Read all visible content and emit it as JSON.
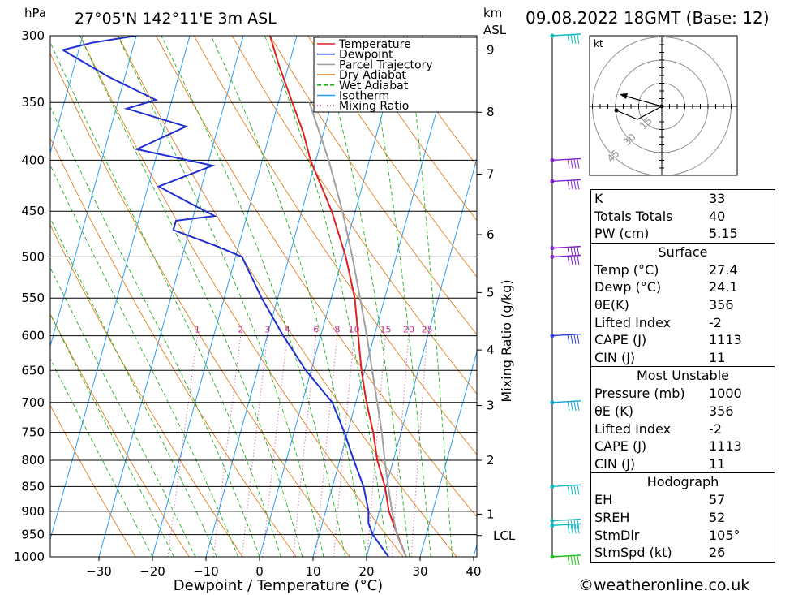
{
  "header": {
    "hpa_label": "hPa",
    "location": "27°05'N  142°11'E  3m  ASL",
    "km_label": "km",
    "asl_label": "ASL",
    "datetime": "09.08.2022  18GMT  (Base: 12)"
  },
  "chart_data": {
    "type": "line",
    "title": "",
    "xlabel": "Dewpoint / Temperature (°C)",
    "ylabel": "hPa",
    "y_scale": "log-pressure",
    "ylim_hpa": [
      1000,
      300
    ],
    "x_ticks": [
      -30,
      -20,
      -10,
      0,
      10,
      20,
      30,
      40
    ],
    "pressure_levels": [
      300,
      350,
      400,
      450,
      500,
      550,
      600,
      650,
      700,
      750,
      800,
      850,
      900,
      950,
      1000
    ],
    "km_ticks": [
      {
        "km": 1,
        "p": 906
      },
      {
        "km": 2,
        "p": 800
      },
      {
        "km": 3,
        "p": 705
      },
      {
        "km": 4,
        "p": 620
      },
      {
        "km": 5,
        "p": 543
      },
      {
        "km": 6,
        "p": 475
      },
      {
        "km": 7,
        "p": 413
      },
      {
        "km": 8,
        "p": 358
      },
      {
        "km": 9,
        "p": 310
      }
    ],
    "lcl": {
      "label": "LCL",
      "p": 952
    },
    "right_axis_label": "Mixing Ratio (g/kg)",
    "mixing_ratio_labels": [
      "1",
      "2",
      "3",
      "4",
      "6",
      "8",
      "10",
      "15",
      "20",
      "25"
    ],
    "mixing_ratio_values": [
      1,
      2,
      3,
      4,
      6,
      8,
      10,
      15,
      20,
      25
    ],
    "legend": [
      "Temperature",
      "Dewpoint",
      "Parcel Trajectory",
      "Dry Adiabat",
      "Wet Adiabat",
      "Isotherm",
      "Mixing Ratio"
    ],
    "legend_position": "top-right",
    "series": [
      {
        "name": "Temperature",
        "color": "#e02020",
        "points": [
          [
            1000,
            27.4
          ],
          [
            950,
            24.6
          ],
          [
            900,
            21.8
          ],
          [
            850,
            19.8
          ],
          [
            800,
            17.0
          ],
          [
            750,
            14.8
          ],
          [
            700,
            12.0
          ],
          [
            650,
            9.4
          ],
          [
            600,
            7.0
          ],
          [
            550,
            4.4
          ],
          [
            500,
            0.6
          ],
          [
            450,
            -4.4
          ],
          [
            400,
            -11.0
          ],
          [
            375,
            -13.8
          ],
          [
            350,
            -17.4
          ],
          [
            320,
            -22.0
          ],
          [
            300,
            -25.0
          ]
        ]
      },
      {
        "name": "Dewpoint",
        "color": "#2030d0",
        "points": [
          [
            1000,
            24.1
          ],
          [
            950,
            20.0
          ],
          [
            925,
            18.6
          ],
          [
            900,
            18.0
          ],
          [
            850,
            15.8
          ],
          [
            800,
            12.6
          ],
          [
            750,
            9.4
          ],
          [
            700,
            5.6
          ],
          [
            650,
            -1.0
          ],
          [
            600,
            -7.0
          ],
          [
            550,
            -13.0
          ],
          [
            500,
            -18.8
          ],
          [
            488,
            -24.0
          ],
          [
            470,
            -33.0
          ],
          [
            460,
            -33.0
          ],
          [
            455,
            -26.0
          ],
          [
            440,
            -32.0
          ],
          [
            425,
            -38.0
          ],
          [
            405,
            -29.0
          ],
          [
            390,
            -44.0
          ],
          [
            370,
            -36.0
          ],
          [
            355,
            -48.0
          ],
          [
            348,
            -43.0
          ],
          [
            330,
            -53.0
          ],
          [
            310,
            -63.0
          ],
          [
            305,
            -58.0
          ],
          [
            300,
            -50.0
          ]
        ]
      },
      {
        "name": "Parcel Trajectory",
        "color": "#a0a0a0",
        "points": [
          [
            1000,
            27.4
          ],
          [
            952,
            24.6
          ],
          [
            900,
            22.4
          ],
          [
            850,
            20.4
          ],
          [
            800,
            18.4
          ],
          [
            750,
            16.4
          ],
          [
            700,
            14.0
          ],
          [
            650,
            11.4
          ],
          [
            600,
            8.6
          ],
          [
            550,
            5.4
          ],
          [
            500,
            1.8
          ],
          [
            450,
            -2.4
          ],
          [
            400,
            -7.6
          ],
          [
            350,
            -14.2
          ]
        ]
      }
    ],
    "wind_barbs_hpa": [
      300,
      400,
      420,
      490,
      500,
      600,
      700,
      850,
      920,
      930,
      1000
    ],
    "stability_indices": {
      "K": 33,
      "Totals Totals": 40,
      "PW (cm)": 5.15,
      "Surface": {
        "Temp (°C)": 27.4,
        "Dewp (°C)": 24.1,
        "θE (K)": 356,
        "Lifted Index": -2,
        "CAPE (J)": 1113,
        "CIN (J)": 11
      },
      "Most Unstable": {
        "Pressure (mb)": 1000,
        "θE (K)": 356,
        "Lifted Index": -2,
        "CAPE (J)": 1113,
        "CIN (J)": 11
      },
      "Hodograph": {
        "EH": 57,
        "SREH": 52,
        "StmDir": "105°",
        "StmSpd (kt)": 26
      }
    }
  },
  "hodograph": {
    "unit_label": "kt",
    "ring_labels": [
      "15",
      "30",
      "45"
    ],
    "ring_values": [
      15,
      30,
      45
    ]
  },
  "indices": {
    "top": [
      {
        "label": "K",
        "value": "33"
      },
      {
        "label": "Totals Totals",
        "value": "40"
      },
      {
        "label": "PW (cm)",
        "value": "5.15"
      }
    ],
    "surface": {
      "title": "Surface",
      "rows": [
        {
          "label": "Temp (°C)",
          "value": "27.4"
        },
        {
          "label": "Dewp (°C)",
          "value": "24.1"
        },
        {
          "label": "θE(K)",
          "value": "356"
        },
        {
          "label": "Lifted Index",
          "value": "-2"
        },
        {
          "label": "CAPE (J)",
          "value": "1113"
        },
        {
          "label": "CIN (J)",
          "value": "11"
        }
      ]
    },
    "most_unstable": {
      "title": "Most Unstable",
      "rows": [
        {
          "label": "Pressure (mb)",
          "value": "1000"
        },
        {
          "label": "θE (K)",
          "value": "356"
        },
        {
          "label": "Lifted Index",
          "value": "-2"
        },
        {
          "label": "CAPE (J)",
          "value": "1113"
        },
        {
          "label": "CIN (J)",
          "value": "11"
        }
      ]
    },
    "hodograph": {
      "title": "Hodograph",
      "rows": [
        {
          "label": "EH",
          "value": "57"
        },
        {
          "label": "SREH",
          "value": "52"
        },
        {
          "label": "StmDir",
          "value": "105°"
        },
        {
          "label": "StmSpd (kt)",
          "value": "26"
        }
      ]
    }
  },
  "footer": {
    "copyright_symbol": "©",
    "site": "weatheronline.co.uk"
  }
}
